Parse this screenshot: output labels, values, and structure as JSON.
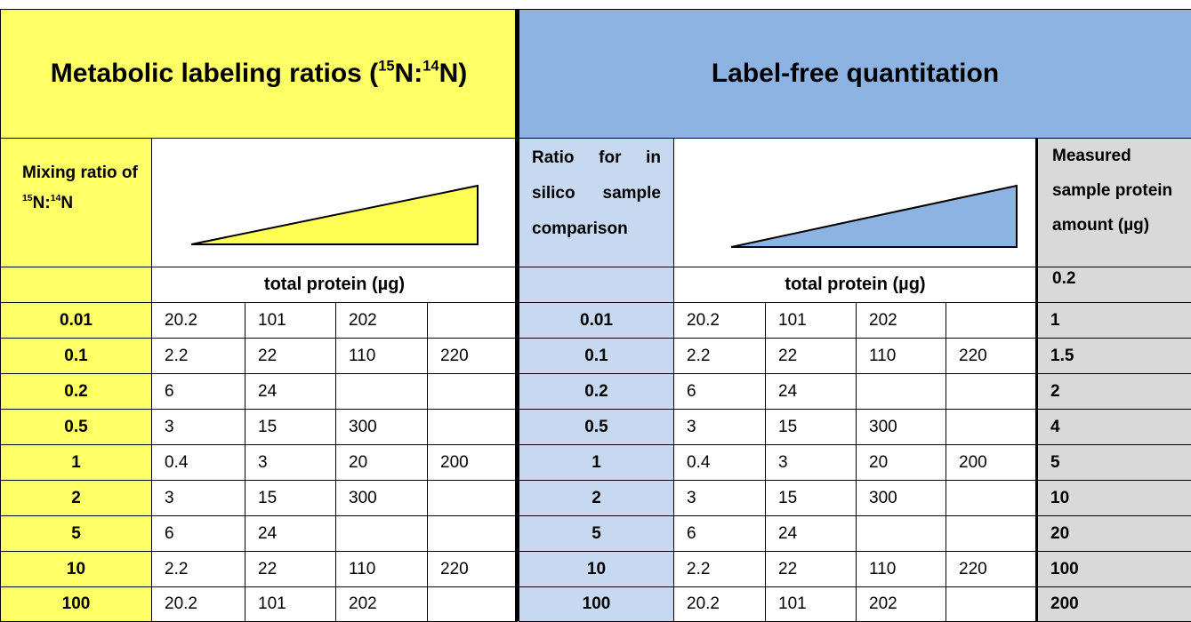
{
  "left": {
    "title": [
      "Metabolic labeling ratios (",
      "15",
      "N:",
      "14",
      "N)"
    ],
    "mixing_label": [
      "Mixing ratio of ",
      "15",
      "N:",
      "14",
      "N"
    ],
    "axis_label": "total protein (µg)",
    "rows": [
      [
        "0.01",
        "20.2",
        "101",
        "202",
        null
      ],
      [
        "0.1",
        "2.2",
        "22",
        "110",
        "220"
      ],
      [
        "0.2",
        "6",
        "24",
        null,
        null
      ],
      [
        "0.5",
        "3",
        "15",
        "300",
        null
      ],
      [
        "1",
        "0.4",
        "3",
        "20",
        "200"
      ],
      [
        "2",
        "3",
        "15",
        "300",
        null
      ],
      [
        "5",
        "6",
        "24",
        null,
        null
      ],
      [
        "10",
        "2.2",
        "22",
        "110",
        "220"
      ],
      [
        "100",
        "20.2",
        "101",
        "202",
        null
      ]
    ]
  },
  "right": {
    "title": "Label-free quantitation",
    "ratio_label": "Ratio for in silico sample comparison",
    "axis_label": "total protein (µg)",
    "measured_label": "Measured sample protein amount (µg)",
    "measured": [
      "0.2",
      "1",
      "1.5",
      "2",
      "4",
      "5",
      "10",
      "20",
      "100",
      "200"
    ],
    "rows": [
      [
        "0.01",
        "20.2",
        "101",
        "202",
        null
      ],
      [
        "0.1",
        "2.2",
        "22",
        "110",
        "220"
      ],
      [
        "0.2",
        "6",
        "24",
        null,
        null
      ],
      [
        "0.5",
        "3",
        "15",
        "300",
        null
      ],
      [
        "1",
        "0.4",
        "3",
        "20",
        "200"
      ],
      [
        "2",
        "3",
        "15",
        "300",
        null
      ],
      [
        "5",
        "6",
        "24",
        null,
        null
      ],
      [
        "10",
        "2.2",
        "22",
        "110",
        "220"
      ],
      [
        "100",
        "20.2",
        "101",
        "202",
        null
      ]
    ]
  }
}
